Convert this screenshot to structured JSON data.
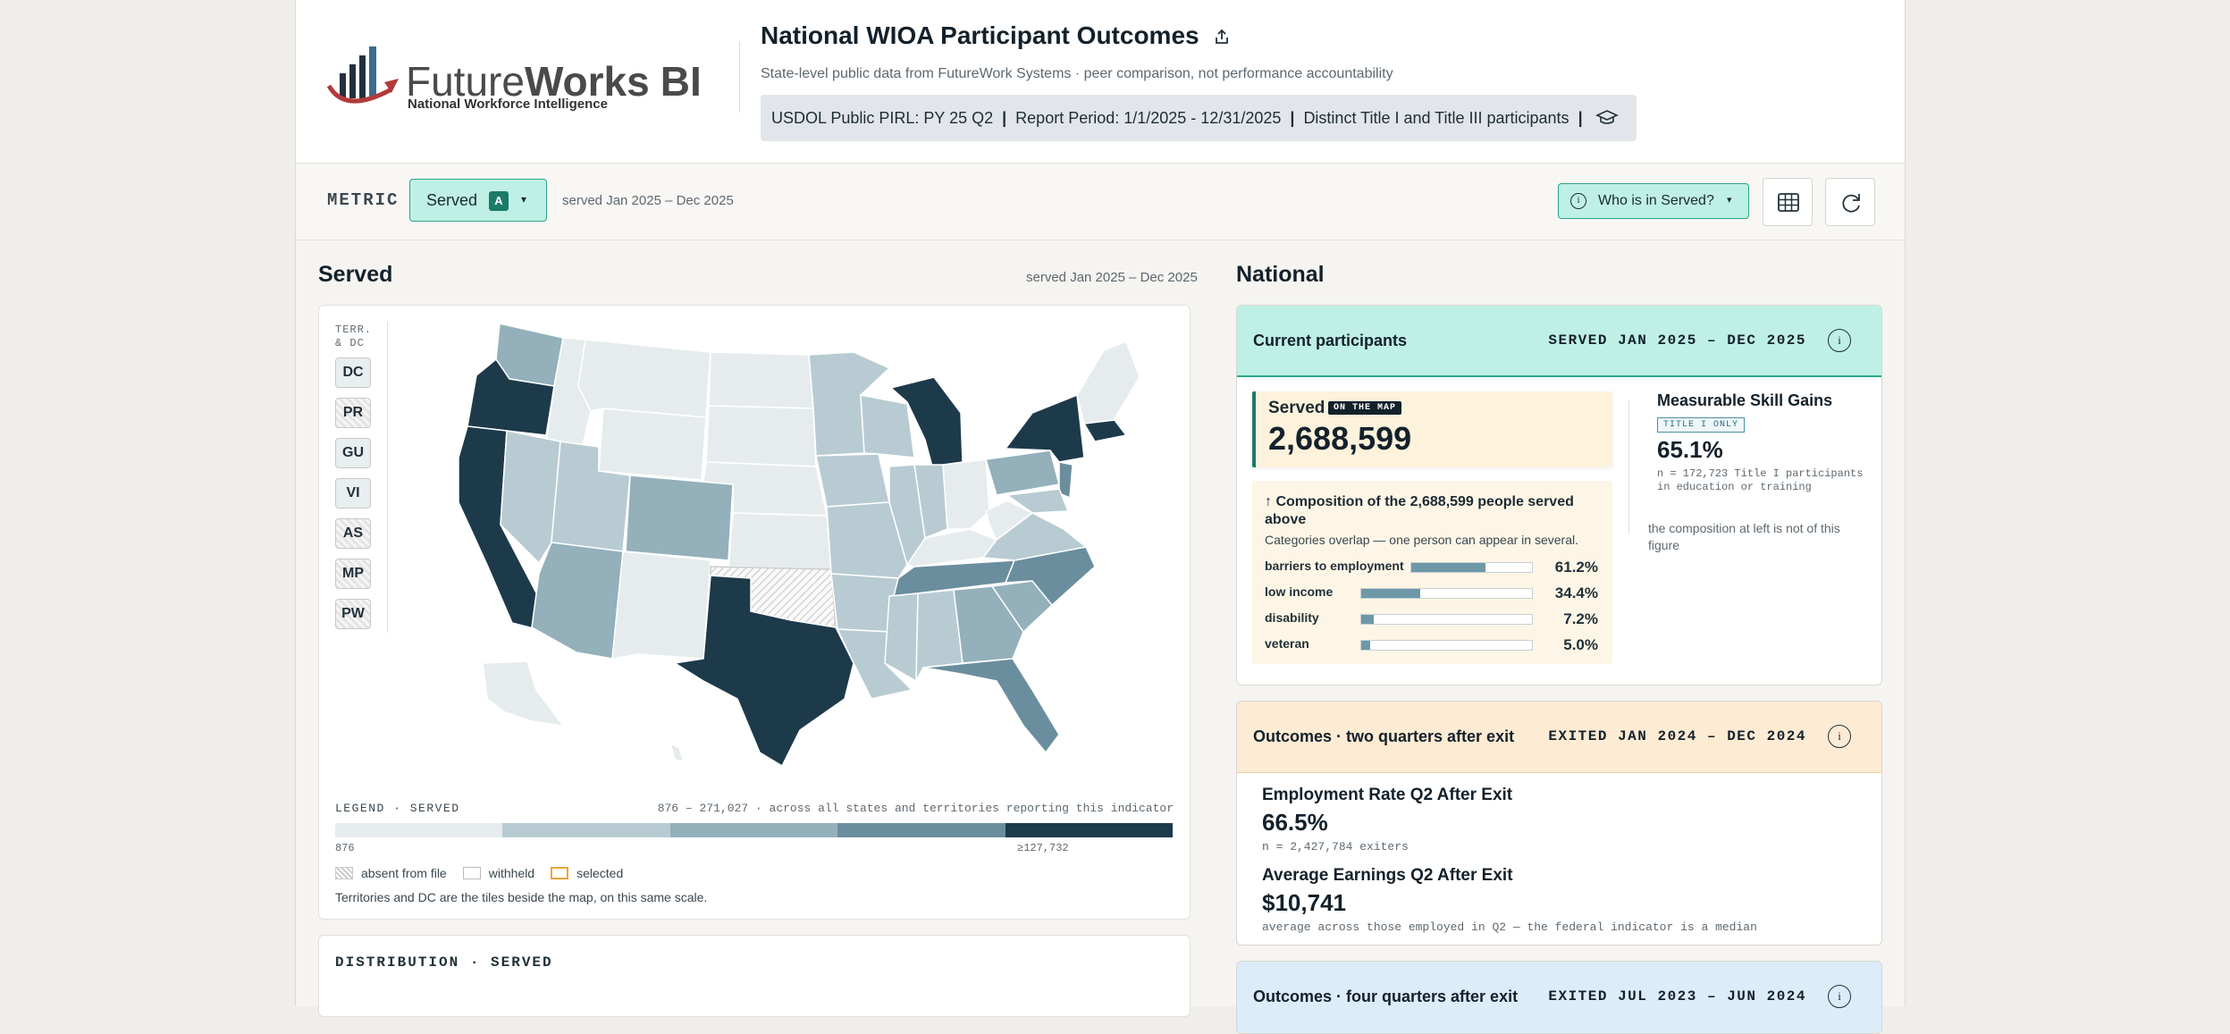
{
  "header": {
    "brand": {
      "future": "Future",
      "works": "Works",
      "bi": "BI",
      "tagline": "National Workforce Intelligence"
    },
    "title": "National WIOA Participant Outcomes",
    "subtitle": "State-level public data from FutureWork Systems · peer comparison, not performance accountability",
    "info": {
      "pirl": "USDOL Public PIRL: PY 25 Q2",
      "period": "Report Period: 1/1/2025 - 12/31/2025",
      "participants": "Distinct Title I and Title III participants"
    }
  },
  "toolbar": {
    "metric_label": "METRIC",
    "metric_value": "Served",
    "metric_badge": "A",
    "metric_range": "served Jan 2025 – Dec 2025",
    "who_label": "Who is in Served?"
  },
  "left": {
    "title": "Served",
    "range": "served Jan 2025 – Dec 2025",
    "territories": {
      "heading_1": "TERR.",
      "heading_2": "& DC",
      "tiles": [
        {
          "label": "DC",
          "style": "plain"
        },
        {
          "label": "PR",
          "style": "hatch"
        },
        {
          "label": "GU",
          "style": "plain"
        },
        {
          "label": "VI",
          "style": "plain"
        },
        {
          "label": "AS",
          "style": "hatch"
        },
        {
          "label": "MP",
          "style": "hatch"
        },
        {
          "label": "PW",
          "style": "hatch"
        }
      ]
    },
    "legend": {
      "heading": "LEGEND · SERVED",
      "range_text": "876 – 271,027 · across all states and territories reporting this indicator",
      "min": "876",
      "max": "≥127,732",
      "colors": [
        "#e6ecee",
        "#b8cbd2",
        "#93b0bb",
        "#6a8e9d",
        "#1d3a4b"
      ],
      "keys": [
        "absent from file",
        "withheld",
        "selected"
      ],
      "note": "Territories and DC are the tiles beside the map, on this same scale."
    },
    "distribution_heading": "DISTRIBUTION · SERVED"
  },
  "national": {
    "title": "National",
    "current": {
      "heading": "Current participants",
      "range": "SERVED JAN 2025 – DEC 2025",
      "served_label": "Served",
      "served_tag": "ON THE MAP",
      "served_value": "2,688,599",
      "composition_heading": "↑ Composition of the 2,688,599 people served above",
      "composition_sub": "Categories overlap — one person can appear in several.",
      "composition": [
        {
          "label": "barriers to employment",
          "value": "61.2%",
          "fraction": 0.612
        },
        {
          "label": "low income",
          "value": "34.4%",
          "fraction": 0.344
        },
        {
          "label": "disability",
          "value": "7.2%",
          "fraction": 0.072
        },
        {
          "label": "veteran",
          "value": "5.0%",
          "fraction": 0.05
        }
      ],
      "msg_title": "Measurable Skill Gains",
      "msg_tag": "TITLE I ONLY",
      "msg_value": "65.1%",
      "msg_n": "n = 172,723 Title I participants in education or training",
      "msg_note": "the composition at left is not of this figure"
    },
    "q2": {
      "heading": "Outcomes · two quarters after exit",
      "range": "EXITED JAN 2024 – DEC 2024",
      "emp_title": "Employment Rate Q2 After Exit",
      "emp_value": "66.5%",
      "emp_n": "n = 2,427,784 exiters",
      "earn_title": "Average Earnings Q2 After Exit",
      "earn_value": "$10,741",
      "earn_n": "average across those employed in Q2 — the federal indicator is a median"
    },
    "q4": {
      "heading": "Outcomes · four quarters after exit",
      "range": "EXITED JUL 2023 – JUN 2024"
    }
  },
  "colors": {
    "accent": "#1c7a68",
    "accent_bg": "#bff0e5",
    "q2_bg": "#fdebd3",
    "q4_bg": "#dcecf8"
  }
}
